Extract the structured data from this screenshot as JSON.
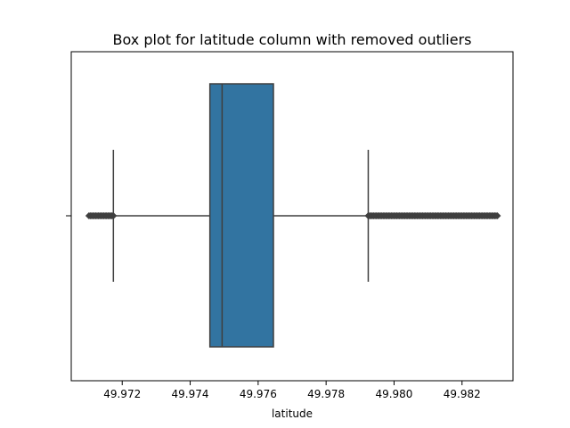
{
  "chart_data": {
    "type": "box",
    "title": "Box plot for latitude column with removed outliers",
    "xlabel": "latitude",
    "ylabel": "",
    "orientation": "horizontal",
    "xlim": [
      49.9705,
      49.9835
    ],
    "xticks": [
      49.972,
      49.974,
      49.976,
      49.978,
      49.98,
      49.982
    ],
    "xtick_labels": [
      "49.972",
      "49.974",
      "49.976",
      "49.978",
      "49.980",
      "49.982"
    ],
    "box": {
      "whisker_low": 49.97174,
      "q1": 49.97458,
      "median": 49.97494,
      "q3": 49.97645,
      "whisker_high": 49.97924,
      "outlier_ranges": [
        [
          49.97102,
          49.97174
        ],
        [
          49.97924,
          49.98307
        ]
      ]
    },
    "colors": {
      "box_fill": "#3274a1",
      "lines": "#3f3f3f",
      "outlier_fill": "#3f3f3f"
    },
    "grid": false
  }
}
